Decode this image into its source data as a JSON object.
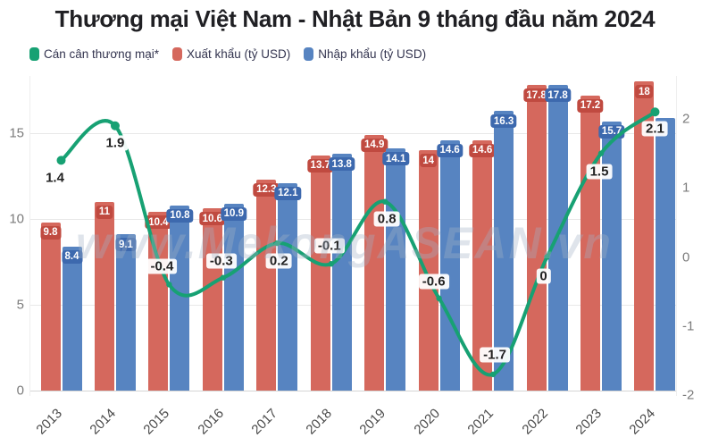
{
  "title": "Thương mại Việt Nam - Nhật Bản 9 tháng đầu năm 2024",
  "watermark": "www.MekongASEAN.vn",
  "colors": {
    "balance_line": "#17a173",
    "export_bar": "#d5685d",
    "export_label_bg": "#c04a40",
    "import_bar": "#5784c1",
    "import_label_bg": "#3d69ae",
    "grid": "#e8e8e8",
    "axis_text": "#7b7b7b",
    "year_text": "#4a4a4a"
  },
  "chart_data": {
    "type": "bar",
    "title": "Thương mại Việt Nam - Nhật Bản 9 tháng đầu năm 2024",
    "categories": [
      "2013",
      "2014",
      "2015",
      "2016",
      "2017",
      "2018",
      "2019",
      "2020",
      "2021",
      "2022",
      "2023",
      "2024"
    ],
    "left_axis": {
      "ticks": [
        0,
        5,
        10,
        15
      ],
      "range": [
        0,
        18.6
      ],
      "unit": "tỷ USD"
    },
    "right_axis": {
      "ticks": [
        -2,
        -1,
        0,
        1,
        2
      ],
      "range": [
        -2.2,
        2.2
      ]
    },
    "grid": "horizontal-on",
    "legend_position": "top-left",
    "series": [
      {
        "name": "Cán cân thương mại*",
        "kind": "line",
        "axis": "right",
        "values": [
          1.4,
          1.9,
          -0.4,
          -0.3,
          0.2,
          -0.1,
          0.8,
          -0.6,
          -1.7,
          0,
          1.5,
          2.1
        ],
        "labels": [
          "1.4",
          "1.9",
          "-0.4",
          "-0.3",
          "0.2",
          "-0.1",
          "0.8",
          "-0.6",
          "-1.7",
          "0",
          "1.5",
          "2.1"
        ],
        "label_offsets": [
          [
            -7,
            13
          ],
          [
            0,
            12
          ],
          [
            -8,
            -13
          ],
          [
            -2,
            -12
          ],
          [
            2,
            13
          ],
          [
            -2,
            -13
          ],
          [
            2,
            12
          ],
          [
            -6,
            -12
          ],
          [
            2,
            -15
          ],
          [
            -4,
            14
          ],
          [
            -2,
            13
          ],
          [
            0,
            12
          ]
        ]
      },
      {
        "name": "Xuất khẩu (tỷ USD)",
        "kind": "bar",
        "axis": "left",
        "values": [
          9.8,
          11,
          10.4,
          10.6,
          12.3,
          13.7,
          14.9,
          14,
          14.6,
          17.8,
          17.2,
          18
        ],
        "labels": [
          "9.8",
          "11",
          "10.4",
          "10.6",
          "12.3",
          "13.7",
          "14.9",
          "14",
          "14.6",
          "17.8",
          "17.2",
          "18"
        ]
      },
      {
        "name": "Nhập khẩu (tỷ USD)",
        "kind": "bar",
        "axis": "left",
        "values": [
          8.4,
          9.1,
          10.8,
          10.9,
          12.1,
          13.8,
          14.1,
          14.6,
          16.3,
          17.8,
          15.7,
          15.9
        ],
        "labels": [
          "8.4",
          "9.1",
          "10.8",
          "10.9",
          "12.1",
          "13.8",
          "14.1",
          "14.6",
          "16.3",
          "17.8",
          "15.7",
          ""
        ]
      }
    ]
  }
}
